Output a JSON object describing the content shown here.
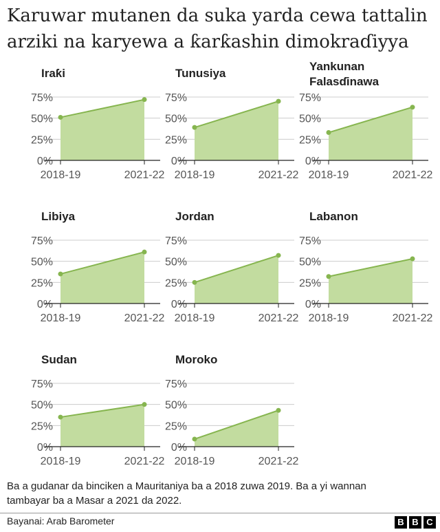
{
  "title": "Karuwar mutanen da suka yarda cewa tattalin arziki na karyewa a ƙarƙashin dimokraɗiyya",
  "note": "Ba a gudanar da binciken a Mauritaniya ba a 2018 zuwa 2019. Ba a yi wannan tambayar ba a Masar a 2021 da 2022.",
  "source": "Bayanai: Arab Barometer",
  "logo": {
    "letters": [
      "B",
      "B",
      "C"
    ]
  },
  "colors": {
    "area": "#c2dc9f",
    "line": "#86b54f",
    "axis": "#222222",
    "grid": "#cccccc"
  },
  "chart_data": [
    {
      "type": "area",
      "title": "Iraƙi",
      "x": [
        "2018-19",
        "2021-22"
      ],
      "values": [
        51,
        72
      ],
      "ylim": [
        0,
        75
      ],
      "yticks": [
        "0%",
        "25%",
        "50%",
        "75%"
      ],
      "grid": true
    },
    {
      "type": "area",
      "title": "Tunusiya",
      "x": [
        "2018-19",
        "2021-22"
      ],
      "values": [
        39,
        70
      ],
      "ylim": [
        0,
        75
      ],
      "yticks": [
        "0%",
        "25%",
        "50%",
        "75%"
      ],
      "grid": true
    },
    {
      "type": "area",
      "title": "Yankunan Falasɗinawa",
      "x": [
        "2018-19",
        "2021-22"
      ],
      "values": [
        33,
        63
      ],
      "ylim": [
        0,
        75
      ],
      "yticks": [
        "0%",
        "25%",
        "50%",
        "75%"
      ],
      "grid": true
    },
    {
      "type": "area",
      "title": "Libiya",
      "x": [
        "2018-19",
        "2021-22"
      ],
      "values": [
        35,
        61
      ],
      "ylim": [
        0,
        75
      ],
      "yticks": [
        "0%",
        "25%",
        "50%",
        "75%"
      ],
      "grid": true
    },
    {
      "type": "area",
      "title": "Jordan",
      "x": [
        "2018-19",
        "2021-22"
      ],
      "values": [
        25,
        57
      ],
      "ylim": [
        0,
        75
      ],
      "yticks": [
        "0%",
        "25%",
        "50%",
        "75%"
      ],
      "grid": true
    },
    {
      "type": "area",
      "title": "Labanon",
      "x": [
        "2018-19",
        "2021-22"
      ],
      "values": [
        32,
        53
      ],
      "ylim": [
        0,
        75
      ],
      "yticks": [
        "0%",
        "25%",
        "50%",
        "75%"
      ],
      "grid": true
    },
    {
      "type": "area",
      "title": "Sudan",
      "x": [
        "2018-19",
        "2021-22"
      ],
      "values": [
        35,
        50
      ],
      "ylim": [
        0,
        75
      ],
      "yticks": [
        "0%",
        "25%",
        "50%",
        "75%"
      ],
      "grid": true
    },
    {
      "type": "area",
      "title": "Moroko",
      "x": [
        "2018-19",
        "2021-22"
      ],
      "values": [
        9,
        43
      ],
      "ylim": [
        0,
        75
      ],
      "yticks": [
        "0%",
        "25%",
        "50%",
        "75%"
      ],
      "grid": true
    }
  ]
}
